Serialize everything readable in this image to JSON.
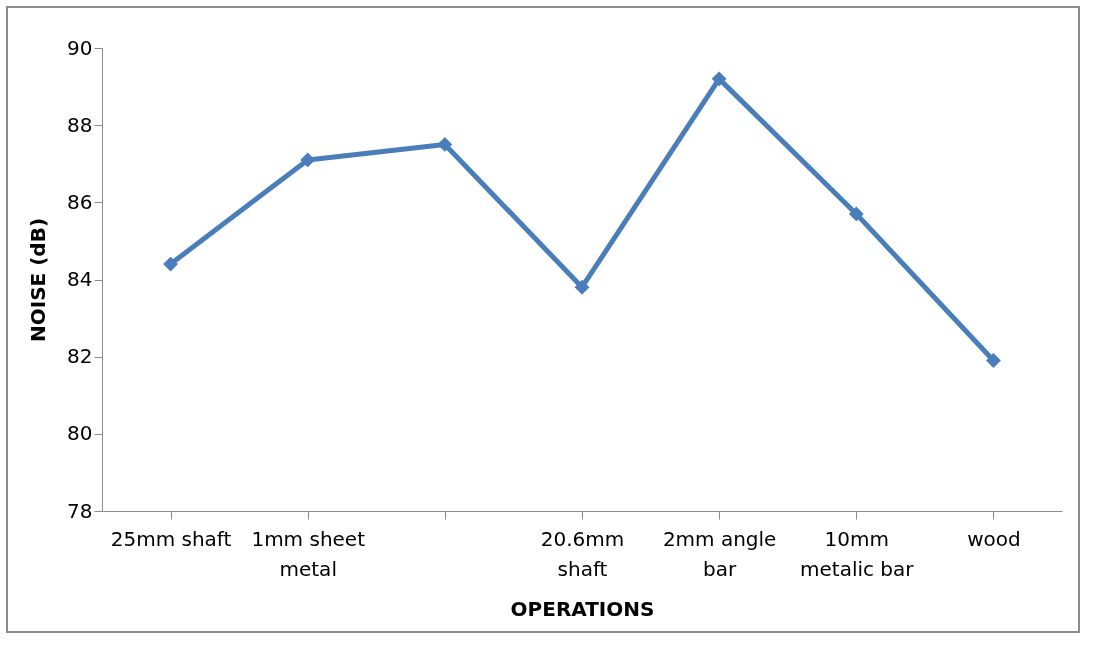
{
  "chart_data": {
    "type": "line",
    "xlabel": "OPERATIONS",
    "ylabel": "NOISE  (dB)",
    "categories": [
      "25mm shaft",
      "1mm sheet metal",
      null,
      "20.6mm shaft",
      "2mm angle bar",
      "10mm metalic bar",
      "wood"
    ],
    "series": [
      {
        "color": "#4a7ebb",
        "values": [
          84.4,
          87.1,
          87.5,
          83.8,
          89.2,
          85.7,
          81.9
        ]
      }
    ],
    "ylim": [
      78,
      90
    ],
    "yticks": [
      78,
      80,
      82,
      84,
      86,
      88,
      90
    ],
    "grid": false,
    "marker": "diamond",
    "line_style": "solid"
  }
}
